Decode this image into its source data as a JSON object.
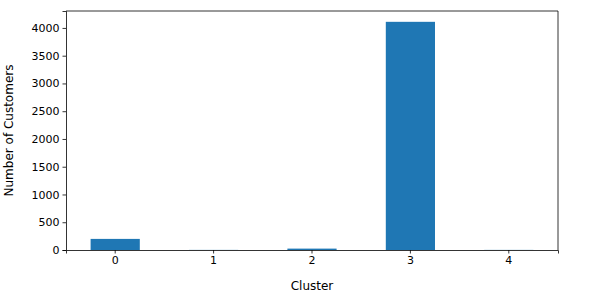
{
  "chart_data": {
    "type": "bar",
    "x_label": "Cluster",
    "y_label": "Number of Customers",
    "categories": [
      "0",
      "1",
      "2",
      "3",
      "4"
    ],
    "values": [
      200,
      2,
      25,
      4110,
      2
    ],
    "color": "#1f77b4",
    "ylim": [
      0,
      4305
    ],
    "yticks": [
      0,
      500,
      1000,
      1500,
      2000,
      2500,
      3000,
      3500,
      4000
    ],
    "grid": false
  }
}
